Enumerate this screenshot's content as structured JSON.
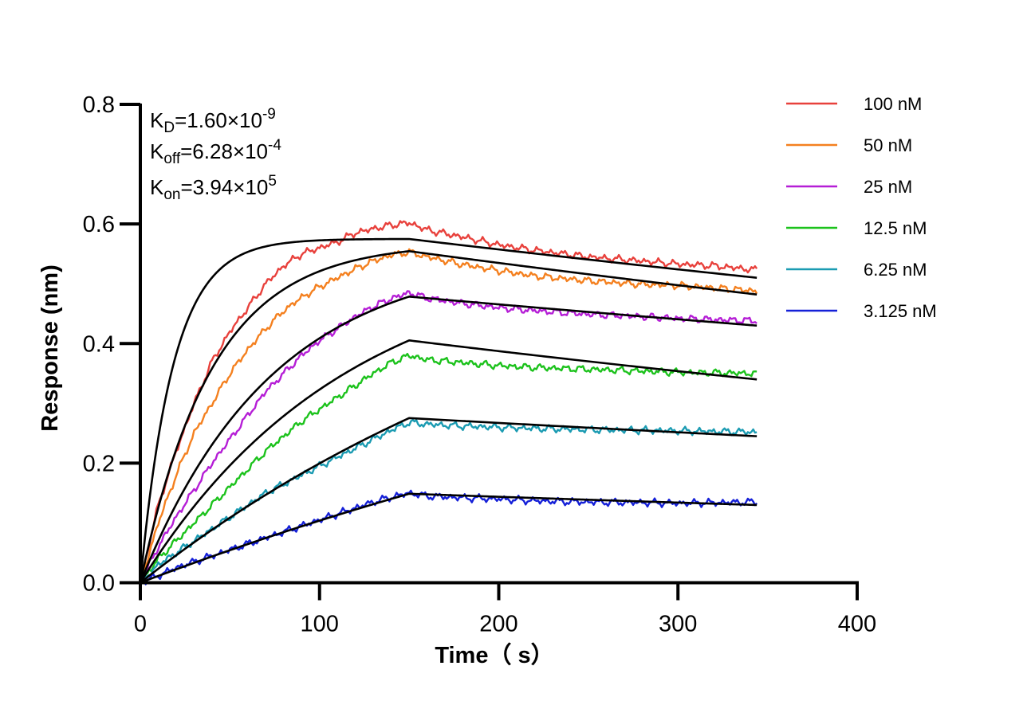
{
  "chart_data": {
    "type": "line",
    "title": "",
    "xlabel": "Time（ s）",
    "ylabel": "Response (nm)",
    "xlim": [
      0,
      400
    ],
    "ylim": [
      0,
      0.8
    ],
    "x_ticks": [
      "0",
      "100",
      "200",
      "300",
      "400"
    ],
    "y_ticks": [
      "0.0",
      "0.2",
      "0.4",
      "0.6",
      "0.8"
    ],
    "grid": false,
    "legend_position": "top-right",
    "association_end": 150,
    "dissociation_end": 344,
    "annotations": {
      "kd": {
        "sym": "K",
        "sub": "D",
        "mant": "=1.60×10",
        "exp": "-9"
      },
      "koff": {
        "sym": "K",
        "sub": "off",
        "mant": "=6.28×10",
        "exp": "-4"
      },
      "kon": {
        "sym": "K",
        "sub": "on",
        "mant": "=3.94×10",
        "exp": "5"
      }
    },
    "series": [
      {
        "name": "100 nM",
        "color": "#e8413c",
        "fit_rmax": 0.575,
        "fit_kobs": 0.0546,
        "fit_end": 0.51,
        "measured": [
          [
            0,
            0
          ],
          [
            10,
            0.13
          ],
          [
            20,
            0.22
          ],
          [
            30,
            0.3
          ],
          [
            40,
            0.37
          ],
          [
            50,
            0.42
          ],
          [
            60,
            0.46
          ],
          [
            70,
            0.5
          ],
          [
            80,
            0.53
          ],
          [
            90,
            0.55
          ],
          [
            100,
            0.56
          ],
          [
            110,
            0.57
          ],
          [
            120,
            0.585
          ],
          [
            130,
            0.592
          ],
          [
            140,
            0.598
          ],
          [
            150,
            0.602
          ],
          [
            160,
            0.59
          ],
          [
            180,
            0.578
          ],
          [
            200,
            0.565
          ],
          [
            220,
            0.556
          ],
          [
            250,
            0.545
          ],
          [
            280,
            0.538
          ],
          [
            300,
            0.533
          ],
          [
            320,
            0.53
          ],
          [
            344,
            0.523
          ]
        ]
      },
      {
        "name": "50 nM",
        "color": "#f4801f",
        "fit_rmax": 0.568,
        "fit_kobs": 0.0249,
        "fit_end": 0.482,
        "measured": [
          [
            0,
            0
          ],
          [
            10,
            0.1
          ],
          [
            20,
            0.18
          ],
          [
            30,
            0.25
          ],
          [
            40,
            0.3
          ],
          [
            50,
            0.35
          ],
          [
            60,
            0.39
          ],
          [
            70,
            0.425
          ],
          [
            80,
            0.455
          ],
          [
            90,
            0.477
          ],
          [
            100,
            0.495
          ],
          [
            110,
            0.51
          ],
          [
            120,
            0.525
          ],
          [
            130,
            0.538
          ],
          [
            140,
            0.548
          ],
          [
            150,
            0.553
          ],
          [
            160,
            0.545
          ],
          [
            180,
            0.532
          ],
          [
            200,
            0.522
          ],
          [
            220,
            0.513
          ],
          [
            250,
            0.505
          ],
          [
            280,
            0.499
          ],
          [
            300,
            0.497
          ],
          [
            320,
            0.493
          ],
          [
            344,
            0.488
          ]
        ]
      },
      {
        "name": "25 nM",
        "color": "#b51ed6",
        "fit_rmax": 0.55,
        "fit_kobs": 0.0136,
        "fit_end": 0.43,
        "measured": [
          [
            0,
            0
          ],
          [
            10,
            0.06
          ],
          [
            20,
            0.11
          ],
          [
            30,
            0.155
          ],
          [
            40,
            0.2
          ],
          [
            50,
            0.24
          ],
          [
            60,
            0.28
          ],
          [
            70,
            0.32
          ],
          [
            80,
            0.35
          ],
          [
            90,
            0.38
          ],
          [
            100,
            0.405
          ],
          [
            110,
            0.425
          ],
          [
            120,
            0.445
          ],
          [
            130,
            0.462
          ],
          [
            140,
            0.475
          ],
          [
            150,
            0.485
          ],
          [
            160,
            0.476
          ],
          [
            180,
            0.467
          ],
          [
            200,
            0.46
          ],
          [
            220,
            0.455
          ],
          [
            250,
            0.449
          ],
          [
            280,
            0.445
          ],
          [
            300,
            0.442
          ],
          [
            320,
            0.44
          ],
          [
            344,
            0.438
          ]
        ]
      },
      {
        "name": "12.5 nM",
        "color": "#1cc21c",
        "fit_rmax": 0.556,
        "fit_kobs": 0.0087,
        "fit_end": 0.34,
        "measured": [
          [
            0,
            0
          ],
          [
            10,
            0.04
          ],
          [
            20,
            0.07
          ],
          [
            30,
            0.1
          ],
          [
            40,
            0.13
          ],
          [
            50,
            0.16
          ],
          [
            60,
            0.19
          ],
          [
            70,
            0.22
          ],
          [
            80,
            0.245
          ],
          [
            90,
            0.27
          ],
          [
            100,
            0.29
          ],
          [
            110,
            0.31
          ],
          [
            120,
            0.33
          ],
          [
            130,
            0.35
          ],
          [
            140,
            0.368
          ],
          [
            150,
            0.38
          ],
          [
            160,
            0.373
          ],
          [
            180,
            0.368
          ],
          [
            200,
            0.363
          ],
          [
            220,
            0.36
          ],
          [
            250,
            0.357
          ],
          [
            280,
            0.354
          ],
          [
            300,
            0.352
          ],
          [
            320,
            0.351
          ],
          [
            344,
            0.35
          ]
        ]
      },
      {
        "name": "6.25 nM",
        "color": "#1b9bb2",
        "fit_rmax": 0.66,
        "fit_kobs": 0.0036,
        "fit_end": 0.245,
        "measured": [
          [
            0,
            0
          ],
          [
            10,
            0.03
          ],
          [
            20,
            0.05
          ],
          [
            30,
            0.07
          ],
          [
            40,
            0.09
          ],
          [
            50,
            0.11
          ],
          [
            60,
            0.13
          ],
          [
            70,
            0.15
          ],
          [
            80,
            0.165
          ],
          [
            90,
            0.18
          ],
          [
            100,
            0.195
          ],
          [
            110,
            0.21
          ],
          [
            120,
            0.225
          ],
          [
            130,
            0.24
          ],
          [
            140,
            0.255
          ],
          [
            150,
            0.268
          ],
          [
            160,
            0.265
          ],
          [
            180,
            0.262
          ],
          [
            200,
            0.26
          ],
          [
            220,
            0.258
          ],
          [
            250,
            0.256
          ],
          [
            280,
            0.255
          ],
          [
            300,
            0.254
          ],
          [
            320,
            0.253
          ],
          [
            344,
            0.252
          ]
        ]
      },
      {
        "name": "3.125 nM",
        "color": "#1520d8",
        "fit_rmax": 0.6,
        "fit_kobs": 0.0019,
        "fit_end": 0.13,
        "measured": [
          [
            0,
            0
          ],
          [
            10,
            0.012
          ],
          [
            20,
            0.025
          ],
          [
            30,
            0.035
          ],
          [
            40,
            0.045
          ],
          [
            50,
            0.055
          ],
          [
            60,
            0.065
          ],
          [
            70,
            0.075
          ],
          [
            80,
            0.085
          ],
          [
            90,
            0.095
          ],
          [
            100,
            0.105
          ],
          [
            110,
            0.115
          ],
          [
            120,
            0.125
          ],
          [
            130,
            0.135
          ],
          [
            140,
            0.143
          ],
          [
            150,
            0.15
          ],
          [
            160,
            0.145
          ],
          [
            180,
            0.142
          ],
          [
            200,
            0.14
          ],
          [
            220,
            0.137
          ],
          [
            250,
            0.135
          ],
          [
            280,
            0.134
          ],
          [
            300,
            0.133
          ],
          [
            320,
            0.134
          ],
          [
            344,
            0.135
          ]
        ]
      }
    ]
  }
}
